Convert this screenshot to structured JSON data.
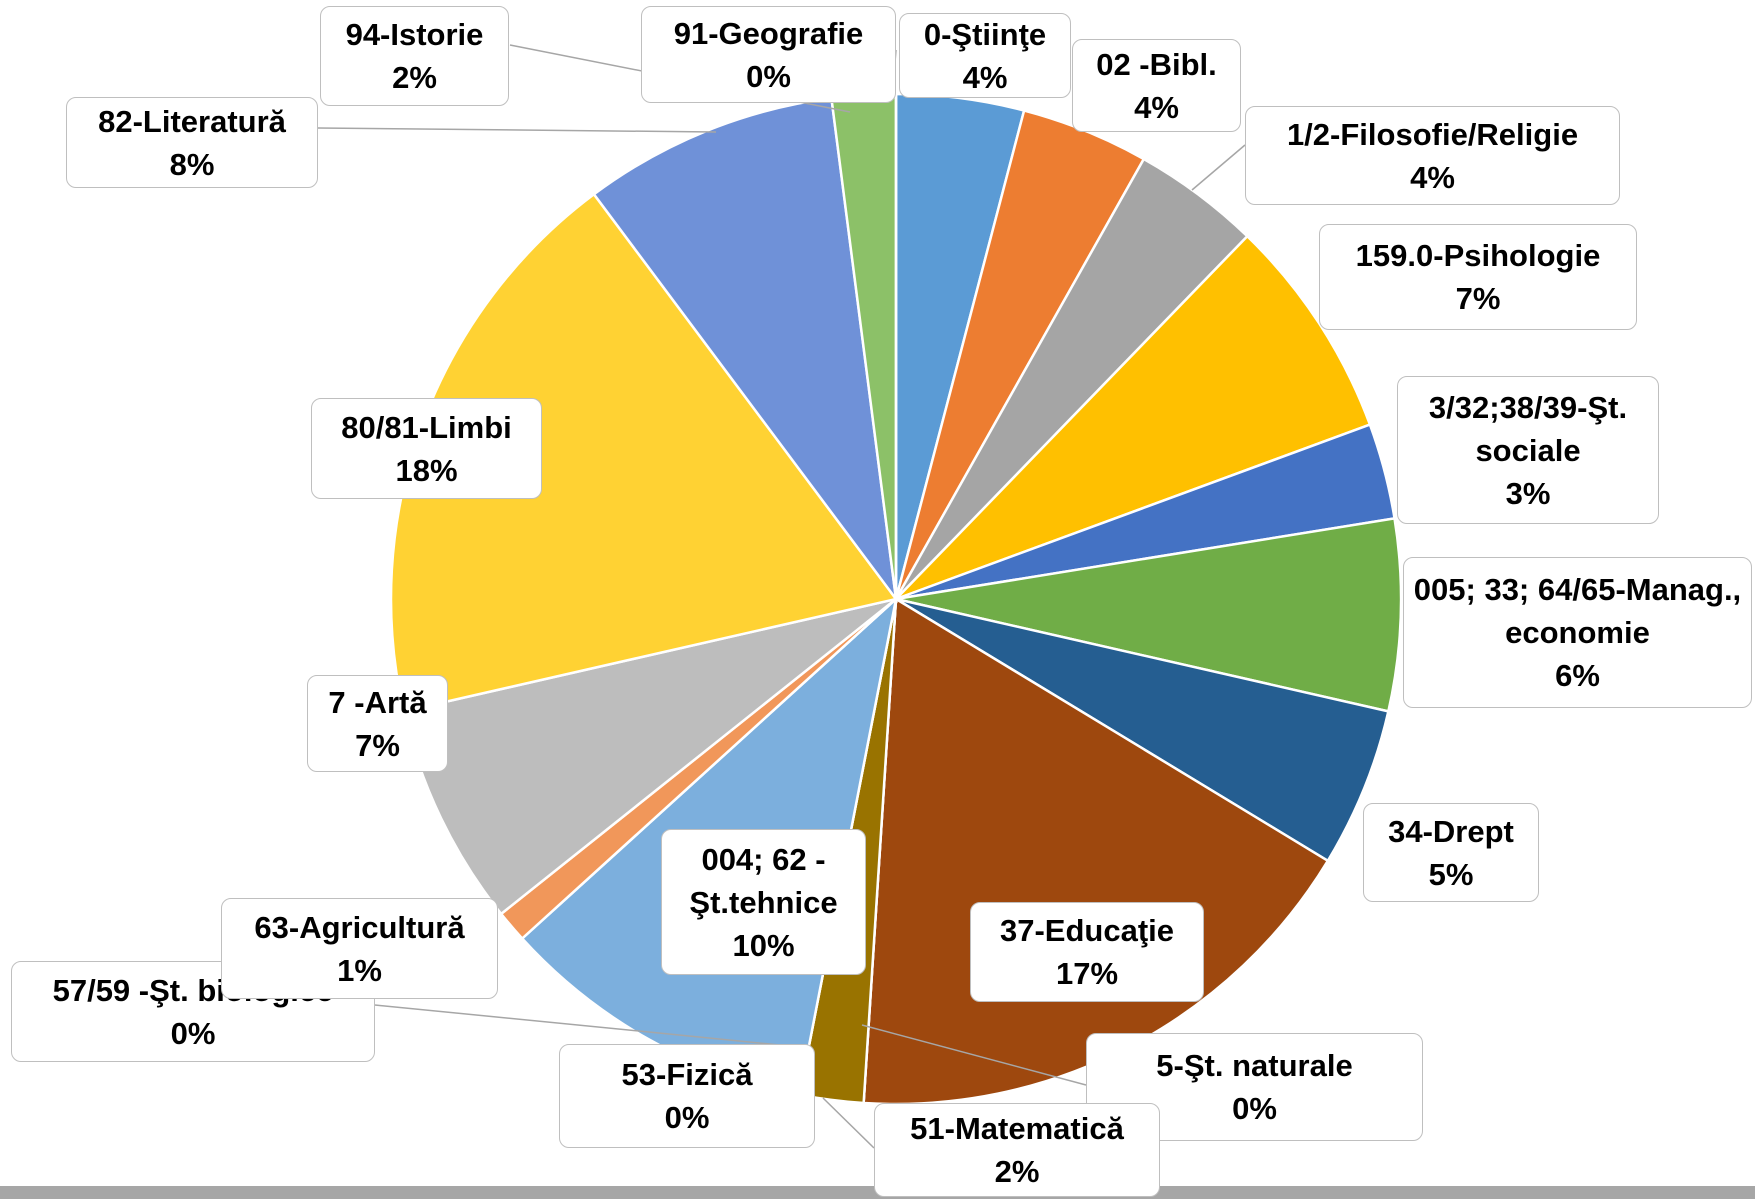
{
  "chart_data": {
    "type": "pie",
    "categories": [
      "0-Ştiinţe",
      "02 -Bibl.",
      "1/2-Filosofie/Religie",
      "159.0-Psihologie",
      "3/32;38/39-Şt. sociale",
      "005; 33; 64/65-Manag., economie",
      "34-Drept",
      "37-Educaţie",
      "5-Şt. naturale",
      "51-Matematică",
      "53-Fizică",
      "004; 62 - Şt.tehnice",
      "57/59 -Şt. biologice",
      "63-Agricultură",
      "7 -Artă",
      "80/81-Limbi",
      "82-Literatură",
      "94-Istorie",
      "91-Geografie"
    ],
    "values": [
      4,
      4,
      4,
      7,
      3,
      6,
      5,
      17,
      0,
      2,
      0,
      10,
      0,
      1,
      7,
      18,
      8,
      2,
      0
    ],
    "value_labels": [
      "4%",
      "4%",
      "4%",
      "7%",
      "3%",
      "6%",
      "5%",
      "17%",
      "0%",
      "2%",
      "0%",
      "10%",
      "0%",
      "1%",
      "7%",
      "18%",
      "8%",
      "2%",
      "0%"
    ],
    "colors": [
      "#5b9bd5",
      "#ed7d31",
      "#a5a5a5",
      "#ffc000",
      "#4472c4",
      "#70ad47",
      "#255e91",
      "#9e480e",
      "#636363",
      "#997300",
      "#264478",
      "#7cafdd",
      "#698ed0",
      "#f1975a",
      "#bdbdbd",
      "#ffd233",
      "#6f91d8",
      "#8cc168",
      "#b0b0b0"
    ]
  }
}
